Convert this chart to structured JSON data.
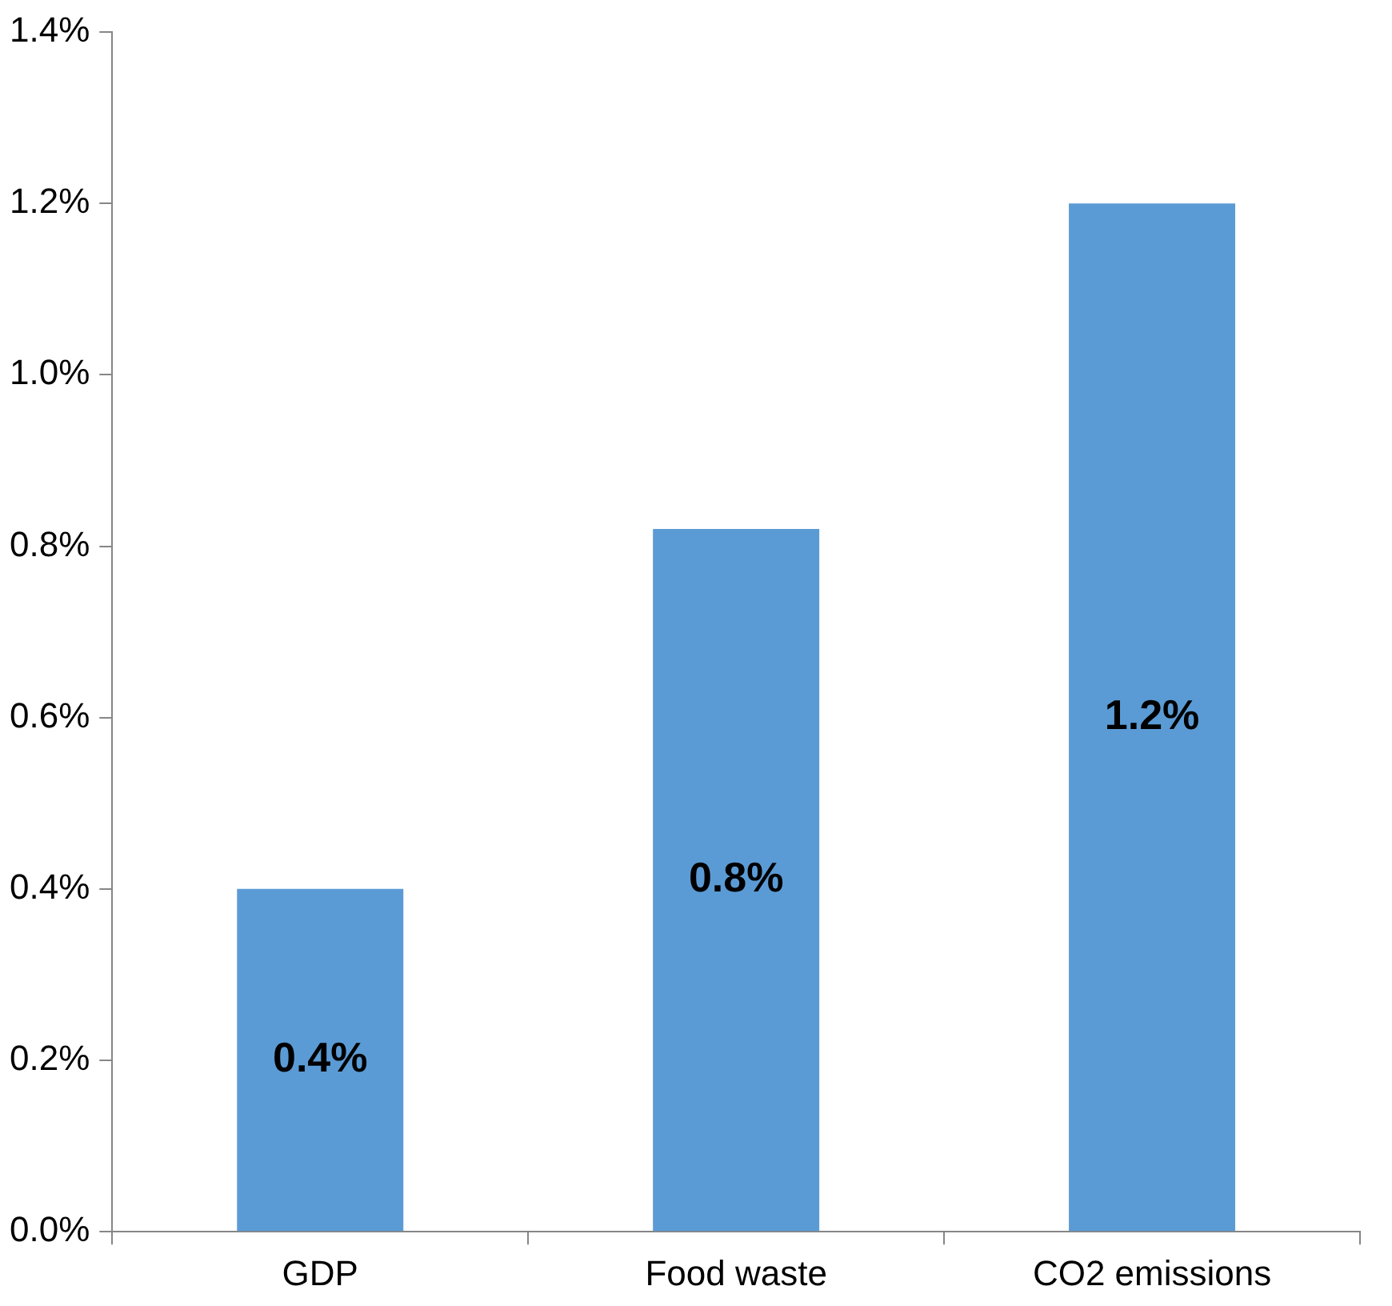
{
  "chart_data": {
    "type": "bar",
    "categories": [
      "GDP",
      "Food waste",
      "CO2 emissions"
    ],
    "values": [
      0.4,
      0.82,
      1.2
    ],
    "value_labels": [
      "0.4%",
      "0.8%",
      "1.2%"
    ],
    "color": "#5b9bd5",
    "ylim": [
      0,
      1.4
    ],
    "yticks": [
      {
        "value": 0,
        "label": "0.0%"
      },
      {
        "value": 0.2,
        "label": "0.2%"
      },
      {
        "value": 0.4,
        "label": "0.4%"
      },
      {
        "value": 0.6,
        "label": "0.6%"
      },
      {
        "value": 0.8,
        "label": "0.8%"
      },
      {
        "value": 1.0,
        "label": "1.0%"
      },
      {
        "value": 1.2,
        "label": "1.2%"
      },
      {
        "value": 1.4,
        "label": "1.4%"
      }
    ],
    "grid": false,
    "legend": false
  }
}
